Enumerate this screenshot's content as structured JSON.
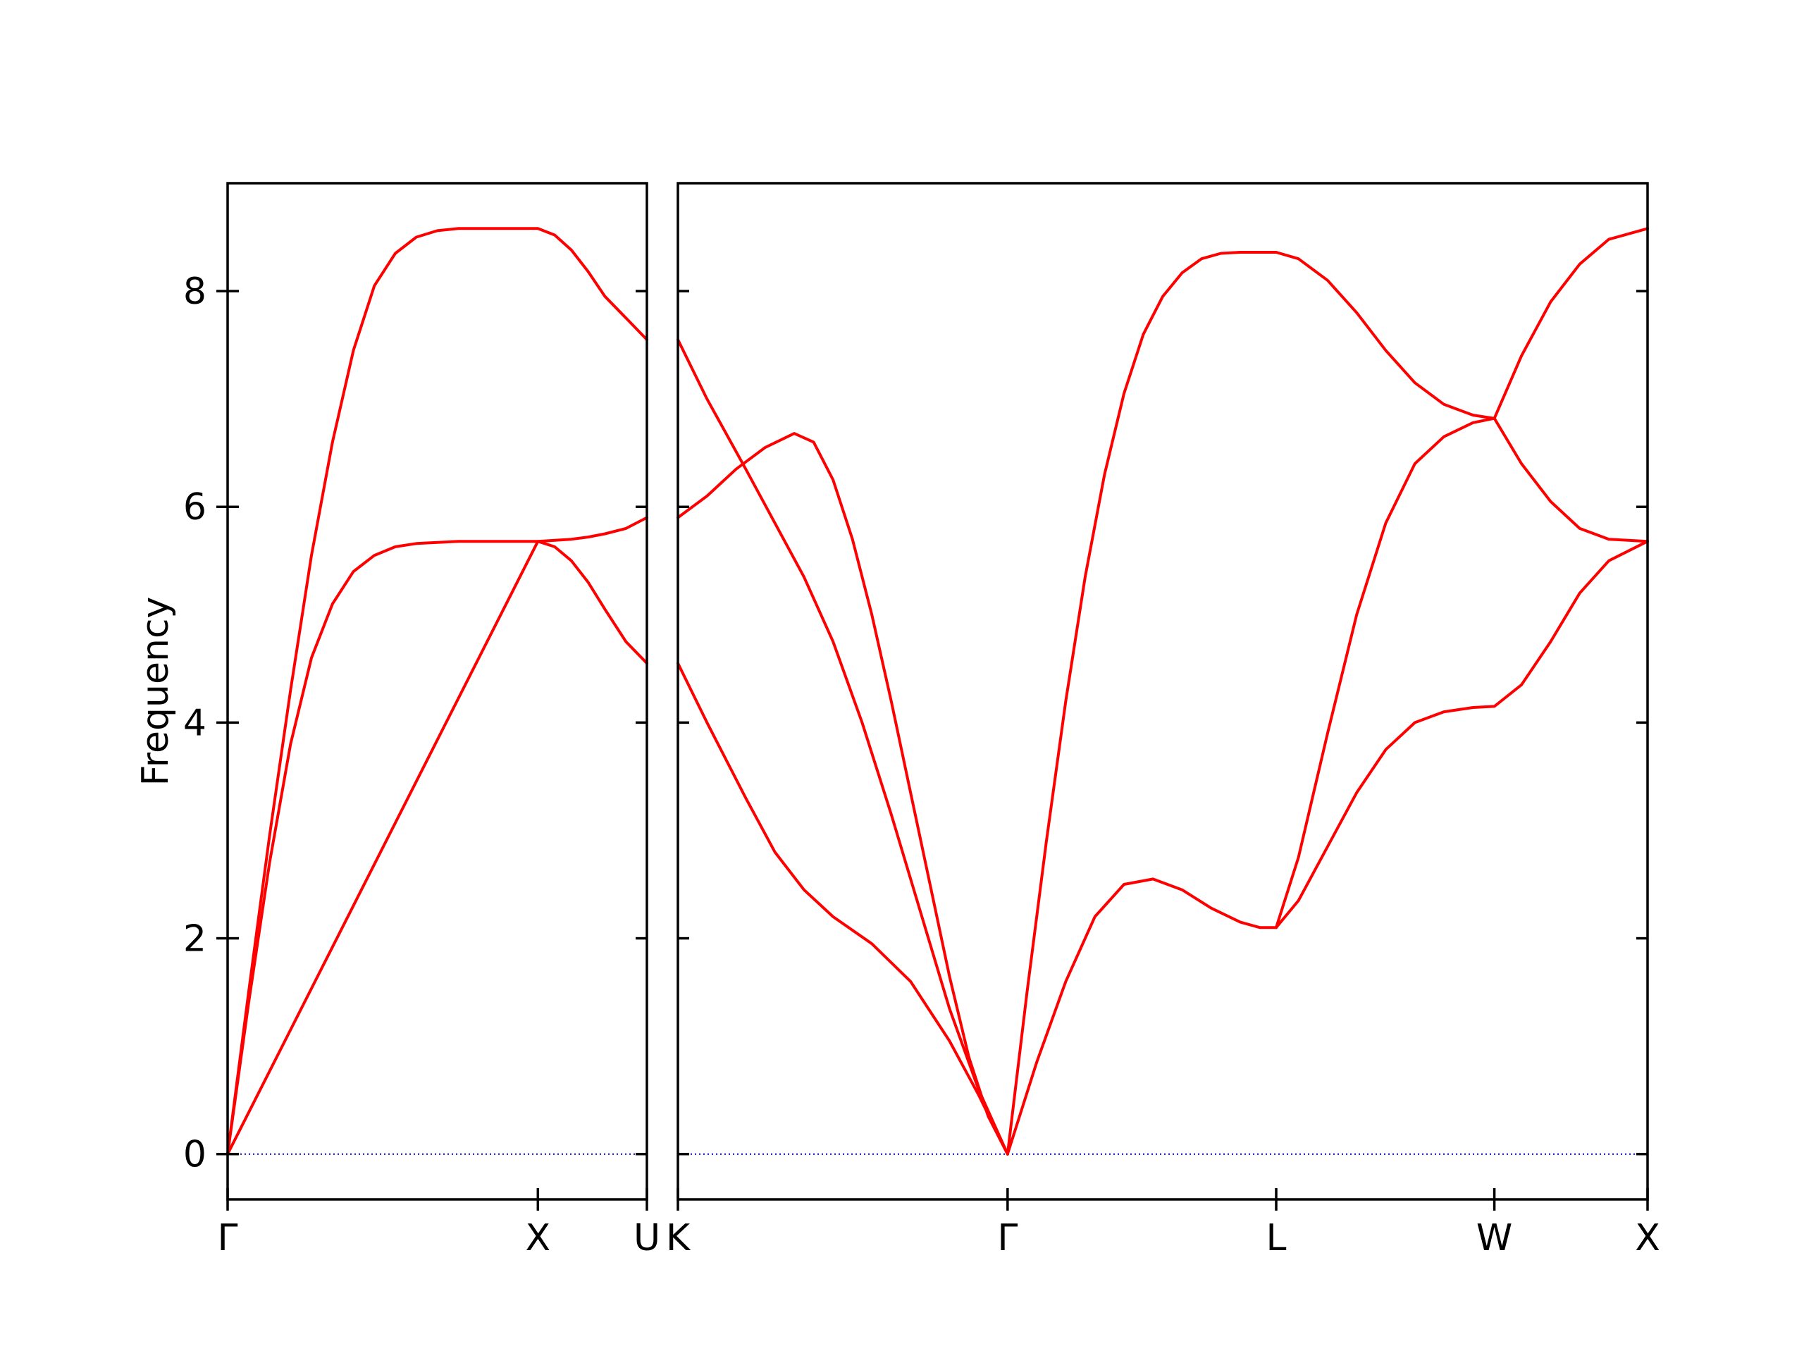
{
  "chart_data": {
    "type": "line",
    "ylabel": "Frequency",
    "ylim": [
      -0.42,
      9.0
    ],
    "yticks": [
      0,
      2,
      4,
      6,
      8
    ],
    "grid": false,
    "legend": "none",
    "colors": {
      "bands": "#ff0000",
      "zero_line": "#0000cc",
      "axes": "#000000"
    },
    "panels": [
      {
        "x_range": [
          0,
          1
        ],
        "xticks": [
          {
            "pos": 0,
            "label": "Γ"
          },
          {
            "pos": 0.74,
            "label": "X"
          },
          {
            "pos": 1,
            "label": "U"
          }
        ],
        "series": [
          {
            "x": [
              0,
              0.05,
              0.1,
              0.15,
              0.2,
              0.25,
              0.3,
              0.35,
              0.4,
              0.45,
              0.5,
              0.55,
              0.6,
              0.65,
              0.7,
              0.74,
              0.78,
              0.82,
              0.86,
              0.9,
              0.95,
              1.0
            ],
            "y": [
              0,
              1.4,
              2.7,
              3.8,
              4.6,
              5.1,
              5.4,
              5.55,
              5.63,
              5.66,
              5.67,
              5.68,
              5.68,
              5.68,
              5.68,
              5.68,
              5.63,
              5.5,
              5.3,
              5.05,
              4.75,
              4.55
            ]
          },
          {
            "x": [
              0,
              0.74,
              0.78,
              0.82,
              0.86,
              0.9,
              0.95,
              1.0
            ],
            "y": [
              0,
              5.68,
              5.69,
              5.7,
              5.72,
              5.75,
              5.8,
              5.9
            ]
          },
          {
            "x": [
              0,
              0.05,
              0.1,
              0.15,
              0.2,
              0.25,
              0.3,
              0.35,
              0.4,
              0.45,
              0.5,
              0.55,
              0.6,
              0.65,
              0.7,
              0.74,
              0.78,
              0.82,
              0.86,
              0.9,
              0.95,
              1.0
            ],
            "y": [
              0,
              1.5,
              2.95,
              4.3,
              5.55,
              6.6,
              7.45,
              8.05,
              8.35,
              8.5,
              8.56,
              8.58,
              8.58,
              8.58,
              8.58,
              8.58,
              8.52,
              8.38,
              8.18,
              7.95,
              7.75,
              7.55
            ]
          }
        ]
      },
      {
        "x_range": [
          0,
          1
        ],
        "xticks": [
          {
            "pos": 0,
            "label": "K"
          },
          {
            "pos": 0.34,
            "label": "Γ"
          },
          {
            "pos": 0.617,
            "label": "L"
          },
          {
            "pos": 0.842,
            "label": "W"
          },
          {
            "pos": 1,
            "label": "X"
          }
        ],
        "series": [
          {
            "x": [
              0,
              0.03,
              0.07,
              0.1,
              0.13,
              0.16,
              0.2,
              0.24,
              0.28,
              0.31,
              0.34
            ],
            "y": [
              4.55,
              4.0,
              3.3,
              2.8,
              2.45,
              2.2,
              1.95,
              1.6,
              1.05,
              0.55,
              0.0
            ]
          },
          {
            "x": [
              0,
              0.03,
              0.07,
              0.1,
              0.13,
              0.16,
              0.19,
              0.22,
              0.25,
              0.28,
              0.31,
              0.34
            ],
            "y": [
              7.55,
              7.0,
              6.35,
              5.85,
              5.35,
              4.75,
              4.0,
              3.15,
              2.25,
              1.35,
              0.6,
              0.0
            ]
          },
          {
            "x": [
              0,
              0.03,
              0.06,
              0.09,
              0.12,
              0.14,
              0.16,
              0.18,
              0.2,
              0.22,
              0.24,
              0.26,
              0.28,
              0.3,
              0.32,
              0.34
            ],
            "y": [
              5.9,
              6.1,
              6.35,
              6.55,
              6.68,
              6.6,
              6.25,
              5.7,
              5.0,
              4.2,
              3.35,
              2.5,
              1.65,
              0.9,
              0.35,
              0.0
            ]
          },
          {
            "x": [
              0.34,
              0.37,
              0.4,
              0.43,
              0.46,
              0.49,
              0.52,
              0.55,
              0.58,
              0.6,
              0.617
            ],
            "y": [
              0.0,
              0.85,
              1.6,
              2.2,
              2.5,
              2.55,
              2.45,
              2.28,
              2.15,
              2.1,
              2.1
            ]
          },
          {
            "x": [
              0.34,
              0.36,
              0.38,
              0.4,
              0.42,
              0.44,
              0.46,
              0.48,
              0.5,
              0.52,
              0.54,
              0.56,
              0.58,
              0.6,
              0.617
            ],
            "y": [
              0.0,
              1.5,
              2.9,
              4.2,
              5.35,
              6.3,
              7.05,
              7.6,
              7.95,
              8.17,
              8.3,
              8.35,
              8.36,
              8.36,
              8.36
            ]
          },
          {
            "x": [
              0.617,
              0.64,
              0.67,
              0.7,
              0.73,
              0.76,
              0.79,
              0.82,
              0.842,
              0.87,
              0.9,
              0.93,
              0.96,
              1.0
            ],
            "y": [
              2.1,
              2.35,
              2.85,
              3.35,
              3.75,
              4.0,
              4.1,
              4.14,
              4.15,
              4.35,
              4.75,
              5.2,
              5.5,
              5.68
            ]
          },
          {
            "x": [
              0.617,
              0.64,
              0.67,
              0.7,
              0.73,
              0.76,
              0.79,
              0.82,
              0.842
            ],
            "y": [
              2.1,
              2.75,
              3.9,
              5.0,
              5.85,
              6.4,
              6.65,
              6.78,
              6.82
            ]
          },
          {
            "x": [
              0.617,
              0.64,
              0.67,
              0.7,
              0.73,
              0.76,
              0.79,
              0.82,
              0.842
            ],
            "y": [
              8.36,
              8.3,
              8.1,
              7.8,
              7.45,
              7.15,
              6.95,
              6.85,
              6.82
            ]
          },
          {
            "x": [
              0.842,
              0.87,
              0.9,
              0.93,
              0.96,
              1.0
            ],
            "y": [
              6.82,
              6.4,
              6.05,
              5.8,
              5.7,
              5.68
            ]
          },
          {
            "x": [
              0.842,
              0.87,
              0.9,
              0.93,
              0.96,
              1.0
            ],
            "y": [
              6.82,
              7.4,
              7.9,
              8.25,
              8.48,
              8.58
            ]
          }
        ]
      }
    ]
  }
}
